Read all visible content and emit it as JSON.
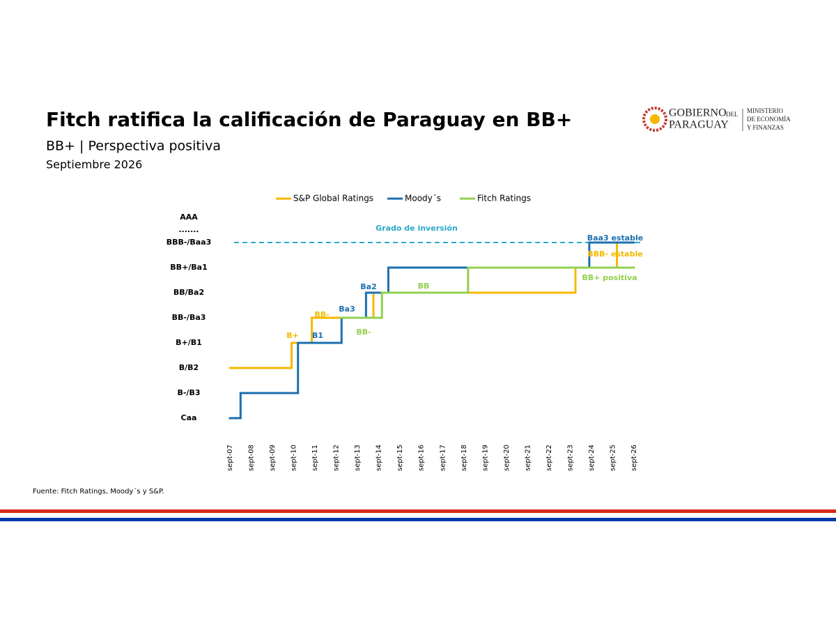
{
  "header": {
    "title": "Fitch ratifica la calificación de Paraguay en BB+",
    "subtitle": "BB+ | Perspectiva positiva",
    "date": "Septiembre 2026",
    "logo": {
      "line1": "GOBIERNO",
      "line1_small": "DEL",
      "line2": "PARAGUAY",
      "ministry": [
        "MINISTERIO",
        "DE ECONOMÍA",
        "Y FINANZAS"
      ]
    }
  },
  "chart_data": {
    "type": "step-line",
    "series": [
      {
        "name": "S&P Global Ratings",
        "color": "#f5b800",
        "x": [
          2007,
          2009.9,
          2010.85,
          2013.75,
          2023.25,
          2025.2,
          2026
        ],
        "values": [
          2,
          3,
          4,
          5,
          6,
          7,
          7
        ]
      },
      {
        "name": "Moody´s",
        "color": "#1a6fb0",
        "x": [
          2007,
          2007.5,
          2010.2,
          2012.25,
          2013.4,
          2014.45,
          2023.9,
          2026
        ],
        "values": [
          0,
          1,
          3,
          4,
          5,
          6,
          7,
          7
        ]
      },
      {
        "name": "Fitch Ratings",
        "color": "#92d050",
        "x": [
          2012.2,
          2014.15,
          2018.2,
          2026
        ],
        "values": [
          4,
          5,
          6,
          6
        ]
      }
    ],
    "xlim": [
      2006.9,
      2026.1
    ],
    "xticks": [
      {
        "value": 2007,
        "label": "sept-07"
      },
      {
        "value": 2008,
        "label": "sept-08"
      },
      {
        "value": 2009,
        "label": "sept-09"
      },
      {
        "value": 2010,
        "label": "sept-10"
      },
      {
        "value": 2011,
        "label": "sept-11"
      },
      {
        "value": 2012,
        "label": "sept-12"
      },
      {
        "value": 2013,
        "label": "sept-13"
      },
      {
        "value": 2014,
        "label": "sept-14"
      },
      {
        "value": 2015,
        "label": "sept-15"
      },
      {
        "value": 2016,
        "label": "sept-16"
      },
      {
        "value": 2017,
        "label": "sept-17"
      },
      {
        "value": 2018,
        "label": "sept-18"
      },
      {
        "value": 2019,
        "label": "sept-19"
      },
      {
        "value": 2020,
        "label": "sept-20"
      },
      {
        "value": 2021,
        "label": "sept-21"
      },
      {
        "value": 2022,
        "label": "sept-22"
      },
      {
        "value": 2023,
        "label": "sept-23"
      },
      {
        "value": 2024,
        "label": "sept-24"
      },
      {
        "value": 2025,
        "label": "sept-25"
      },
      {
        "value": 2026,
        "label": "sept-26"
      }
    ],
    "ylim": [
      -0.3,
      8.3
    ],
    "yticks": [
      {
        "value": 0,
        "label": "Caa"
      },
      {
        "value": 1,
        "label": "B-/B3"
      },
      {
        "value": 2,
        "label": "B/B2"
      },
      {
        "value": 3,
        "label": "B+/B1"
      },
      {
        "value": 4,
        "label": "BB-/Ba3"
      },
      {
        "value": 5,
        "label": "BB/Ba2"
      },
      {
        "value": 6,
        "label": "BB+/Ba1"
      },
      {
        "value": 7,
        "label": "BBB-/Baa3"
      },
      {
        "value": 7.5,
        "label": "......."
      },
      {
        "value": 8,
        "label": "AAA"
      }
    ],
    "reference_line": {
      "value": 7,
      "label": "Grado de inversión",
      "color": "#2aa9c9"
    },
    "annotations": [
      {
        "text": "B+",
        "color": "#f5b800"
      },
      {
        "text": "B1",
        "color": "#1a6fb0"
      },
      {
        "text": "BB-",
        "color": "#f5b800"
      },
      {
        "text": "Ba3",
        "color": "#1a6fb0"
      },
      {
        "text": "Ba2",
        "color": "#1a6fb0"
      },
      {
        "text": "BB",
        "color": "#92d050"
      },
      {
        "text": "BB-",
        "color": "#92d050"
      },
      {
        "text": "Baa3 estable",
        "color": "#1a6fb0"
      },
      {
        "text": "BBB- estable",
        "color": "#f5b800"
      },
      {
        "text": "BB+ positiva",
        "color": "#92d050"
      }
    ],
    "legend": "top",
    "source": "Fuente: Fitch Ratings, Moody´s y S&P."
  }
}
